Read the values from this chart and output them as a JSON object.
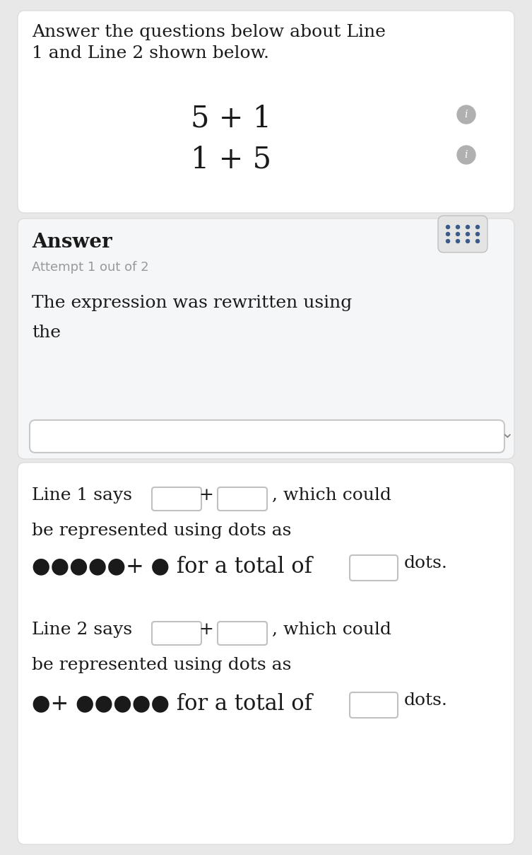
{
  "bg_color": "#e8e8e8",
  "card_color": "#ffffff",
  "light_card_color": "#f5f6f8",
  "title_text_line1": "Answer the questions below about Line",
  "title_text_line2": "1 and Line 2 shown below.",
  "line1_expr": "5 + 1",
  "line2_expr": "1 + 5",
  "answer_label": "Answer",
  "attempt_label": "Attempt 1 out of 2",
  "expr_rewritten_line1": "The expression was rewritten using",
  "expr_rewritten_line2": "the",
  "line1_label": "Line 1 says",
  "line2_label": "Line 2 says",
  "which_could": ", which could",
  "be_represented": "be represented using dots as",
  "dots1": "●●●●●+ ● for a total of",
  "dots2": "●+ ●●●●● for a total of",
  "dots_word": "dots.",
  "info_color": "#b0b0b0",
  "text_color": "#1a1a1a",
  "gray_text": "#999999",
  "box_border": "#c0c0c0",
  "kbd_bg": "#eaeaea",
  "kbd_icon_color": "#3a5a8a",
  "dropdown_border": "#c8c8c8",
  "chevron_color": "#888888",
  "main_fs": 18,
  "expr_fs": 30,
  "answer_fs": 20,
  "attempt_fs": 13,
  "dots_fs": 22
}
